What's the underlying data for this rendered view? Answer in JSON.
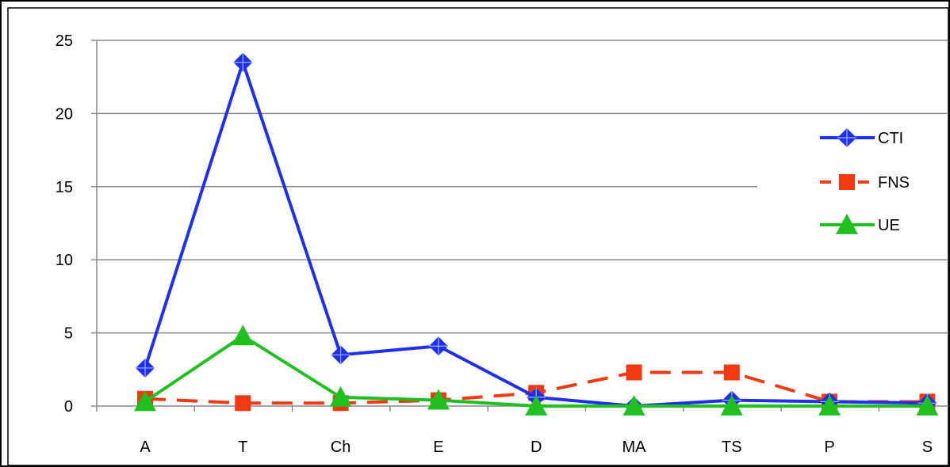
{
  "chart_data": {
    "type": "line",
    "title": "",
    "xlabel": "",
    "ylabel": "",
    "categories": [
      "A",
      "T",
      "Ch",
      "E",
      "D",
      "MA",
      "TS",
      "P",
      "S"
    ],
    "ylim": [
      0,
      25
    ],
    "yticks": [
      0,
      5,
      10,
      15,
      20,
      25
    ],
    "grid": "horizontal",
    "legend_position": "right",
    "series": [
      {
        "name": "CTI",
        "color": "#1f2ff0",
        "dash": "solid",
        "marker": "diamond-cross",
        "values": [
          2.6,
          23.5,
          3.5,
          4.1,
          0.6,
          0.0,
          0.4,
          0.3,
          0.2
        ]
      },
      {
        "name": "FNS",
        "color": "#f23a12",
        "dash": "dashed",
        "marker": "square",
        "values": [
          0.5,
          0.2,
          0.2,
          0.4,
          0.9,
          2.3,
          2.3,
          0.3,
          0.3
        ]
      },
      {
        "name": "UE",
        "color": "#20c020",
        "dash": "solid",
        "marker": "triangle",
        "values": [
          0.3,
          4.8,
          0.6,
          0.4,
          0.0,
          0.0,
          0.0,
          0.0,
          0.0
        ]
      }
    ]
  }
}
